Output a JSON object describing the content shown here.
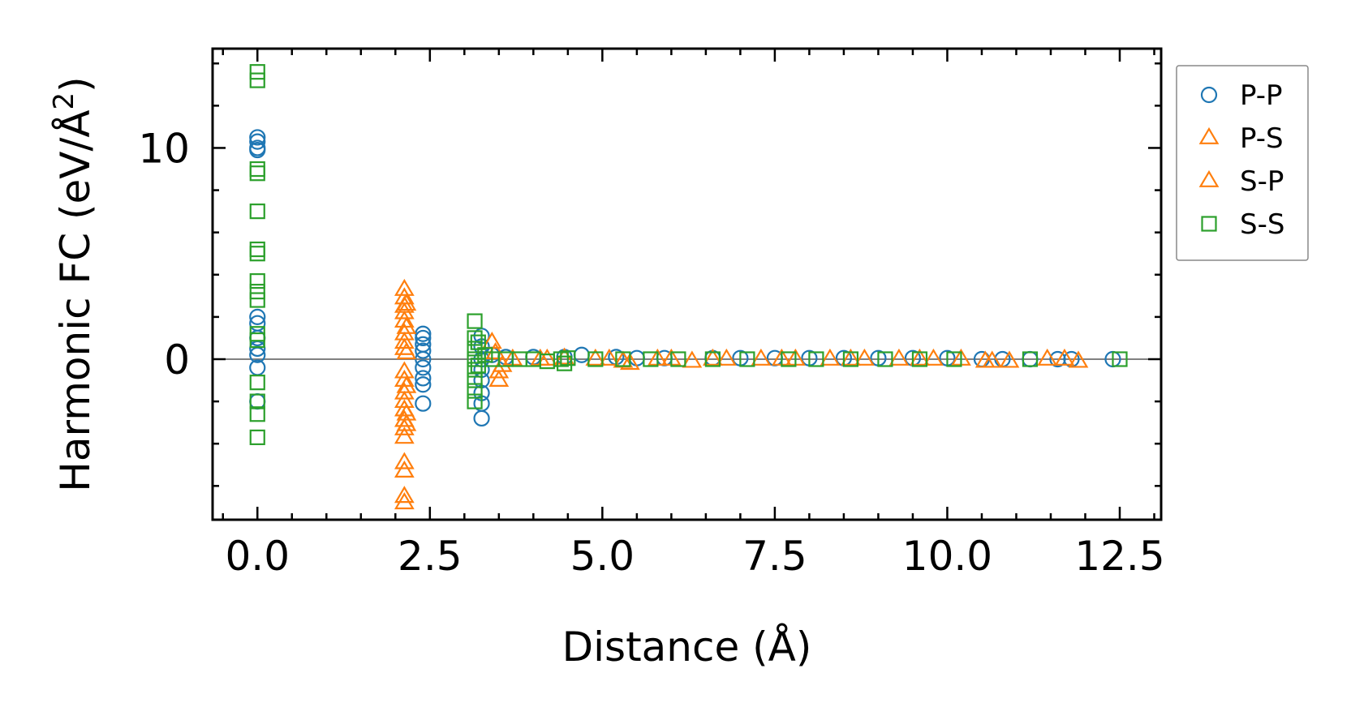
{
  "chart_data": {
    "type": "scatter",
    "title": "",
    "xlabel": "Distance (Å)",
    "ylabel_main": "Harmonic FC (eV/Å",
    "ylabel_sup": "2",
    "ylabel_close": ")",
    "xlim": [
      -0.65,
      13.1
    ],
    "ylim": [
      -7.6,
      14.7
    ],
    "x_ticks": [
      0.0,
      2.5,
      5.0,
      7.5,
      10.0,
      12.5
    ],
    "x_tick_labels": [
      "0.0",
      "2.5",
      "5.0",
      "7.5",
      "10.0",
      "12.5"
    ],
    "y_ticks": [
      0,
      10
    ],
    "y_tick_labels": [
      "0",
      "10"
    ],
    "zero_line": true,
    "legend_position": "outside-right-top",
    "series": [
      {
        "name": "P-P",
        "marker": "circle",
        "color": "#1f77b4",
        "points": [
          [
            0.0,
            10.5
          ],
          [
            0.0,
            10.3
          ],
          [
            0.0,
            10.0
          ],
          [
            0.0,
            9.9
          ],
          [
            0.0,
            2.0
          ],
          [
            0.0,
            1.7
          ],
          [
            0.0,
            1.0
          ],
          [
            0.0,
            0.5
          ],
          [
            0.0,
            0.2
          ],
          [
            0.0,
            -0.4
          ],
          [
            0.0,
            -2.0
          ],
          [
            2.4,
            1.2
          ],
          [
            2.4,
            1.0
          ],
          [
            2.4,
            0.7
          ],
          [
            2.4,
            0.4
          ],
          [
            2.4,
            0.0
          ],
          [
            2.4,
            -0.4
          ],
          [
            2.4,
            -0.9
          ],
          [
            2.4,
            -1.2
          ],
          [
            2.4,
            -2.1
          ],
          [
            3.25,
            1.1
          ],
          [
            3.25,
            0.6
          ],
          [
            3.25,
            0.0
          ],
          [
            3.25,
            -0.5
          ],
          [
            3.25,
            -1.0
          ],
          [
            3.25,
            -1.6
          ],
          [
            3.25,
            -2.1
          ],
          [
            3.25,
            -2.8
          ],
          [
            3.4,
            0.2
          ],
          [
            3.6,
            0.1
          ],
          [
            4.0,
            0.1
          ],
          [
            4.45,
            0.1
          ],
          [
            4.7,
            0.2
          ],
          [
            5.2,
            0.1
          ],
          [
            5.5,
            0.05
          ],
          [
            5.9,
            0.05
          ],
          [
            6.6,
            0.05
          ],
          [
            7.0,
            0.05
          ],
          [
            7.5,
            0.05
          ],
          [
            8.0,
            0.05
          ],
          [
            8.5,
            0.05
          ],
          [
            9.0,
            0.05
          ],
          [
            9.5,
            0.05
          ],
          [
            10.0,
            0.05
          ],
          [
            10.5,
            0.0
          ],
          [
            10.8,
            0.0
          ],
          [
            11.2,
            0.0
          ],
          [
            11.6,
            0.0
          ],
          [
            11.8,
            0.0
          ],
          [
            12.4,
            0.0
          ]
        ]
      },
      {
        "name": "P-S",
        "marker": "triangle",
        "color": "#ff7f0e",
        "points": [
          [
            2.13,
            3.3
          ],
          [
            2.13,
            2.9
          ],
          [
            2.13,
            2.5
          ],
          [
            2.13,
            2.2
          ],
          [
            2.13,
            1.8
          ],
          [
            2.13,
            1.2
          ],
          [
            2.13,
            0.8
          ],
          [
            2.13,
            0.5
          ],
          [
            2.13,
            -0.6
          ],
          [
            2.13,
            -1.0
          ],
          [
            2.13,
            -1.6
          ],
          [
            2.13,
            -2.0
          ],
          [
            2.13,
            -2.4
          ],
          [
            2.13,
            -2.9
          ],
          [
            2.13,
            -3.3
          ],
          [
            2.13,
            -3.7
          ],
          [
            2.13,
            -4.9
          ],
          [
            2.13,
            -5.3
          ],
          [
            2.13,
            -6.5
          ],
          [
            2.13,
            -6.8
          ],
          [
            3.4,
            0.8
          ],
          [
            3.45,
            0.3
          ],
          [
            3.5,
            -0.6
          ],
          [
            3.5,
            -1.0
          ],
          [
            3.7,
            0.0
          ],
          [
            4.1,
            0.0
          ],
          [
            4.45,
            0.05
          ],
          [
            4.9,
            0.0
          ],
          [
            5.1,
            0.0
          ],
          [
            5.4,
            -0.2
          ],
          [
            5.8,
            0.0
          ],
          [
            6.3,
            -0.1
          ],
          [
            6.8,
            0.0
          ],
          [
            7.3,
            0.0
          ],
          [
            7.8,
            0.0
          ],
          [
            8.3,
            0.0
          ],
          [
            8.8,
            0.0
          ],
          [
            9.3,
            0.0
          ],
          [
            9.8,
            0.0
          ],
          [
            10.2,
            0.0
          ],
          [
            10.55,
            -0.1
          ],
          [
            10.9,
            -0.1
          ],
          [
            11.45,
            0.0
          ],
          [
            11.9,
            -0.1
          ]
        ]
      },
      {
        "name": "S-P",
        "marker": "triangle",
        "color": "#ff7f0e",
        "points": [
          [
            2.16,
            2.6
          ],
          [
            2.16,
            1.5
          ],
          [
            2.16,
            0.3
          ],
          [
            2.16,
            -1.3
          ],
          [
            2.16,
            -2.6
          ],
          [
            2.16,
            -3.1
          ],
          [
            3.55,
            -0.3
          ],
          [
            4.2,
            0.0
          ],
          [
            5.3,
            -0.1
          ],
          [
            6.0,
            0.0
          ],
          [
            6.6,
            0.0
          ],
          [
            7.6,
            0.0
          ],
          [
            8.6,
            0.0
          ],
          [
            9.6,
            0.0
          ],
          [
            10.65,
            -0.1
          ],
          [
            11.7,
            0.0
          ]
        ]
      },
      {
        "name": "S-S",
        "marker": "square",
        "color": "#2ca02c",
        "points": [
          [
            0.0,
            13.6
          ],
          [
            0.0,
            13.2
          ],
          [
            0.0,
            9.0
          ],
          [
            0.0,
            8.8
          ],
          [
            0.0,
            7.0
          ],
          [
            0.0,
            5.2
          ],
          [
            0.0,
            5.0
          ],
          [
            0.0,
            3.7
          ],
          [
            0.0,
            3.2
          ],
          [
            0.0,
            2.8
          ],
          [
            0.0,
            1.2
          ],
          [
            0.0,
            0.9
          ],
          [
            0.0,
            -1.1
          ],
          [
            0.0,
            -2.0
          ],
          [
            0.0,
            -2.6
          ],
          [
            0.0,
            -3.7
          ],
          [
            3.15,
            1.8
          ],
          [
            3.15,
            1.0
          ],
          [
            3.15,
            0.5
          ],
          [
            3.15,
            0.0
          ],
          [
            3.15,
            -0.5
          ],
          [
            3.15,
            -1.0
          ],
          [
            3.15,
            -1.5
          ],
          [
            3.15,
            -2.0
          ],
          [
            3.2,
            0.8
          ],
          [
            3.2,
            -0.3
          ],
          [
            3.3,
            0.2
          ],
          [
            3.4,
            0.0
          ],
          [
            3.6,
            0.0
          ],
          [
            3.8,
            0.0
          ],
          [
            4.0,
            0.0
          ],
          [
            4.2,
            -0.1
          ],
          [
            4.4,
            0.0
          ],
          [
            4.45,
            -0.2
          ],
          [
            4.5,
            0.05
          ],
          [
            4.9,
            0.0
          ],
          [
            5.3,
            0.0
          ],
          [
            5.7,
            0.0
          ],
          [
            6.1,
            0.0
          ],
          [
            6.6,
            0.0
          ],
          [
            7.1,
            0.0
          ],
          [
            7.7,
            0.0
          ],
          [
            8.1,
            0.0
          ],
          [
            8.6,
            0.0
          ],
          [
            9.1,
            0.0
          ],
          [
            9.6,
            0.0
          ],
          [
            10.1,
            0.0
          ],
          [
            11.2,
            0.0
          ],
          [
            12.5,
            0.0
          ]
        ]
      }
    ],
    "legend": [
      {
        "label": "P-P",
        "marker": "circle",
        "color": "#1f77b4"
      },
      {
        "label": "P-S",
        "marker": "triangle",
        "color": "#ff7f0e"
      },
      {
        "label": "S-P",
        "marker": "triangle",
        "color": "#ff7f0e"
      },
      {
        "label": "S-S",
        "marker": "square",
        "color": "#2ca02c"
      }
    ]
  }
}
